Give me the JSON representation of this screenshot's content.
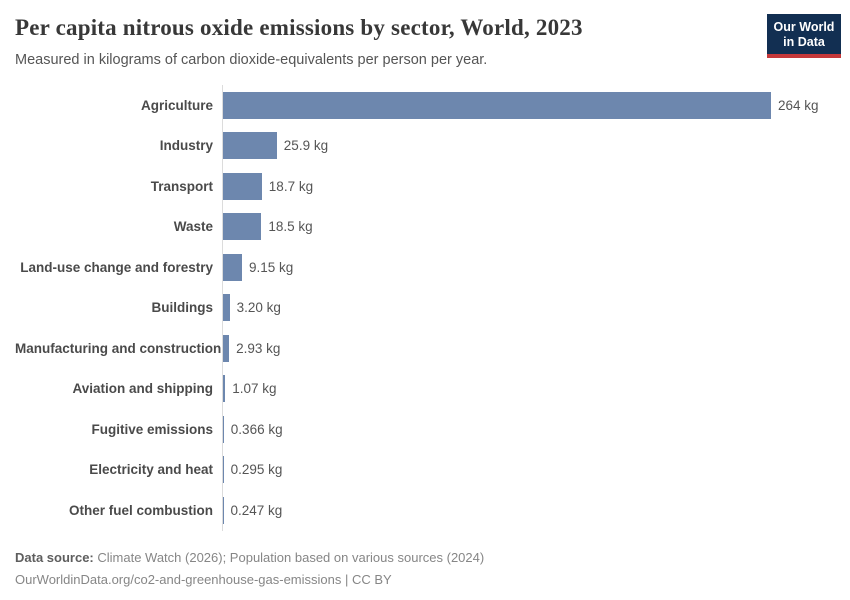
{
  "logo": {
    "line1": "Our World",
    "line2": "in Data"
  },
  "colors": {
    "bar": "#6d87ae",
    "logo_bg": "#122f52",
    "logo_accent": "#c5383a",
    "axis_line": "#dcdcdc"
  },
  "chart_data": {
    "type": "bar",
    "orientation": "horizontal",
    "title": "Per capita nitrous oxide emissions by sector, World, 2023",
    "subtitle": "Measured in kilograms of carbon dioxide-equivalents per person per year.",
    "unit": "kg",
    "xlim": [
      0,
      264
    ],
    "grid": false,
    "legend": "none",
    "categories": [
      "Agriculture",
      "Industry",
      "Transport",
      "Waste",
      "Land-use change and forestry",
      "Buildings",
      "Manufacturing and construction",
      "Aviation and shipping",
      "Fugitive emissions",
      "Electricity and heat",
      "Other fuel combustion"
    ],
    "values": [
      264,
      25.9,
      18.7,
      18.5,
      9.15,
      3.2,
      2.93,
      1.07,
      0.366,
      0.295,
      0.247
    ],
    "value_labels": [
      "264 kg",
      "25.9 kg",
      "18.7 kg",
      "18.5 kg",
      "9.15 kg",
      "3.20 kg",
      "2.93 kg",
      "1.07 kg",
      "0.366 kg",
      "0.295 kg",
      "0.247 kg"
    ]
  },
  "footer": {
    "source_label": "Data source:",
    "source_text": " Climate Watch (2026); Population based on various sources (2024)",
    "link_text": "OurWorldinData.org/co2-and-greenhouse-gas-emissions | CC BY"
  }
}
